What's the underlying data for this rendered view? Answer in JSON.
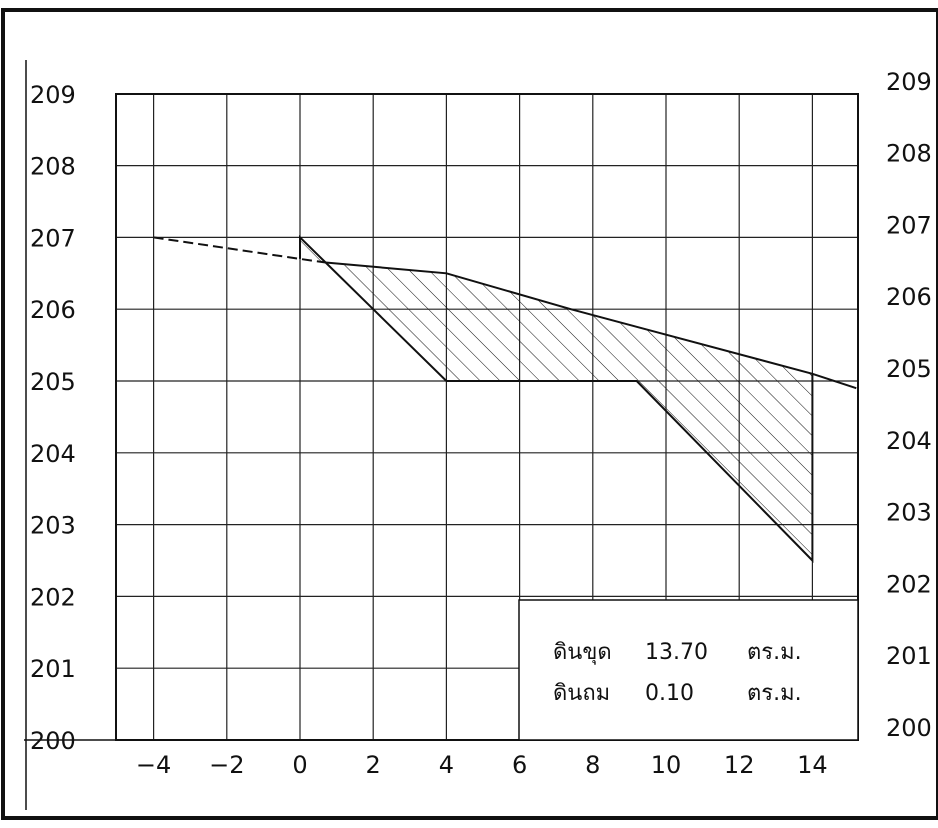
{
  "chart_data": {
    "type": "area",
    "title": "",
    "xlabel": "",
    "ylabel": "",
    "xlim": [
      -4.5,
      15.2
    ],
    "ylim": [
      200,
      209
    ],
    "x_ticks": [
      "−4",
      "−2",
      "0",
      "2",
      "4",
      "6",
      "8",
      "10",
      "12",
      "14"
    ],
    "x_tick_values": [
      -4,
      -2,
      0,
      2,
      4,
      6,
      8,
      10,
      12,
      14
    ],
    "y_ticks_left": [
      "200",
      "201",
      "202",
      "203",
      "204",
      "205",
      "206",
      "207",
      "208",
      "209"
    ],
    "y_ticks_right": [
      "200",
      "201",
      "202",
      "203",
      "204",
      "205",
      "206",
      "207",
      "208",
      "209"
    ],
    "y_tick_values": [
      200,
      201,
      202,
      203,
      204,
      205,
      206,
      207,
      208,
      209
    ],
    "grid": true,
    "series": [
      {
        "style": "dashed",
        "x": [
          -4,
          0,
          0.7
        ],
        "y": [
          207,
          206.7,
          206.65
        ]
      },
      {
        "style": "solid",
        "x": [
          0.7,
          4,
          7.4,
          14,
          15.2
        ],
        "y": [
          206.65,
          206.5,
          206.0,
          205.1,
          204.9
        ]
      },
      {
        "style": "solid",
        "x": [
          0,
          0,
          0.7,
          2,
          4,
          9.2,
          14,
          14
        ],
        "y": [
          206.7,
          207,
          206.65,
          206.0,
          205.0,
          205.0,
          202.5,
          205.1
        ]
      }
    ],
    "hatched_regions": [
      {
        "x": [
          0,
          0.7,
          0,
          0
        ],
        "y": [
          206.7,
          206.65,
          207,
          206.7
        ]
      },
      {
        "x": [
          0.7,
          4,
          7.4,
          14,
          14,
          9.2,
          4,
          2
        ],
        "y": [
          206.65,
          206.5,
          206.0,
          205.1,
          202.5,
          205.0,
          205.0,
          206.0
        ]
      }
    ],
    "summary": [
      {
        "label": "ดินขุด",
        "value": "13.70",
        "unit": "ตร.ม."
      },
      {
        "label": "ดินถม",
        "value": "0.10",
        "unit": "ตร.ม."
      }
    ],
    "colors": {
      "line": "#111111",
      "grid": "#222222",
      "background": "#ffffff"
    }
  }
}
